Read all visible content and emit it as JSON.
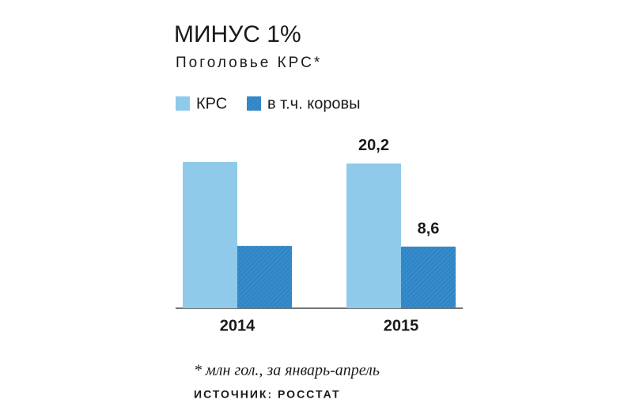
{
  "chart_data": {
    "type": "bar",
    "title": "МИНУС 1%",
    "subtitle": "Поголовье КРС*",
    "categories": [
      "2014",
      "2015"
    ],
    "series": [
      {
        "name": "КРС",
        "color": "#8fcaea",
        "values": [
          20.4,
          20.2
        ],
        "value_labels": [
          null,
          "20,2"
        ]
      },
      {
        "name": "в т.ч. коровы",
        "color": "#2f86c6",
        "values": [
          8.7,
          8.6
        ],
        "value_labels": [
          null,
          "8,6"
        ]
      }
    ],
    "footnote": "* млн гол., за январь-апрель",
    "source": "ИСТОЧНИК: РОССТАТ"
  }
}
